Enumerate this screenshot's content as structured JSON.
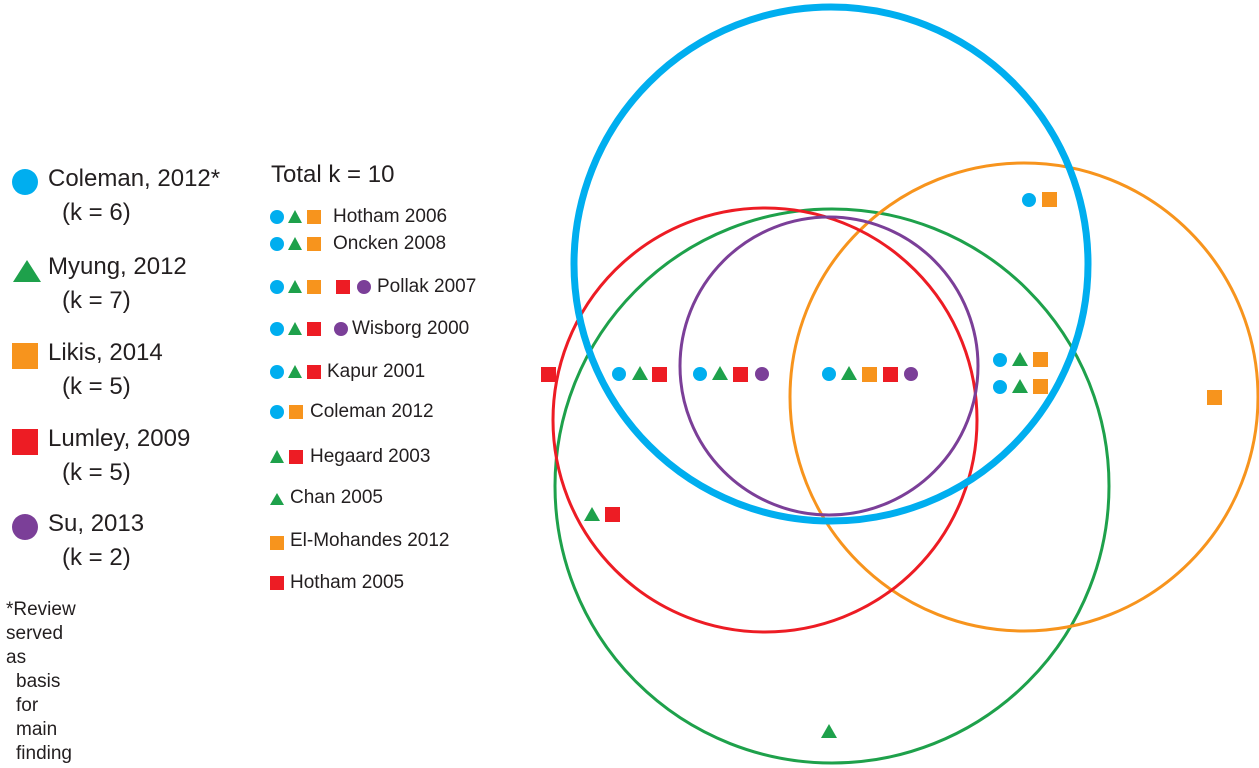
{
  "colors": {
    "blue": "#00aeef",
    "green": "#1ea14b",
    "orange": "#f7941d",
    "red": "#ed1c24",
    "purple": "#7b3f98"
  },
  "reviews": [
    {
      "name": "Coleman, 2012*",
      "k": "(k = 6)",
      "shape": "circle",
      "color": "#00aeef"
    },
    {
      "name": "Myung, 2012",
      "k": "(k = 7)",
      "shape": "triangle",
      "color": "#1ea14b"
    },
    {
      "name": "Likis, 2014",
      "k": "(k = 5)",
      "shape": "square",
      "color": "#f7941d"
    },
    {
      "name": "Lumley, 2009",
      "k": "(k = 5)",
      "shape": "square",
      "color": "#ed1c24"
    },
    {
      "name": "Su, 2013",
      "k": "(k = 2)",
      "shape": "circle",
      "color": "#7b3f98"
    }
  ],
  "note": {
    "line1": "*Review served as",
    "line2": "basis for main finding"
  },
  "total": "Total k = 10",
  "studies": [
    {
      "label": "Hotham 2006",
      "marks": [
        "blue-circle",
        "green-triangle",
        "orange-square"
      ]
    },
    {
      "label": "Oncken 2008",
      "marks": [
        "blue-circle",
        "green-triangle",
        "orange-square"
      ]
    },
    {
      "label": "Pollak 2007",
      "marks": [
        "blue-circle",
        "green-triangle",
        "orange-square",
        "red-square",
        "purple-circle"
      ]
    },
    {
      "label": "Wisborg 2000",
      "marks": [
        "blue-circle",
        "green-triangle",
        "red-square",
        "purple-circle"
      ]
    },
    {
      "label": "Kapur 2001",
      "marks": [
        "blue-circle",
        "green-triangle",
        "red-square"
      ]
    },
    {
      "label": "Coleman 2012",
      "marks": [
        "blue-circle",
        "orange-square"
      ]
    },
    {
      "label": "Hegaard 2003",
      "marks": [
        "green-triangle",
        "red-square"
      ]
    },
    {
      "label": "Chan 2005",
      "marks": [
        "green-triangle"
      ]
    },
    {
      "label": "El-Mohandes 2012",
      "marks": [
        "orange-square"
      ]
    },
    {
      "label": "Hotham 2005",
      "marks": [
        "red-square"
      ]
    }
  ]
}
